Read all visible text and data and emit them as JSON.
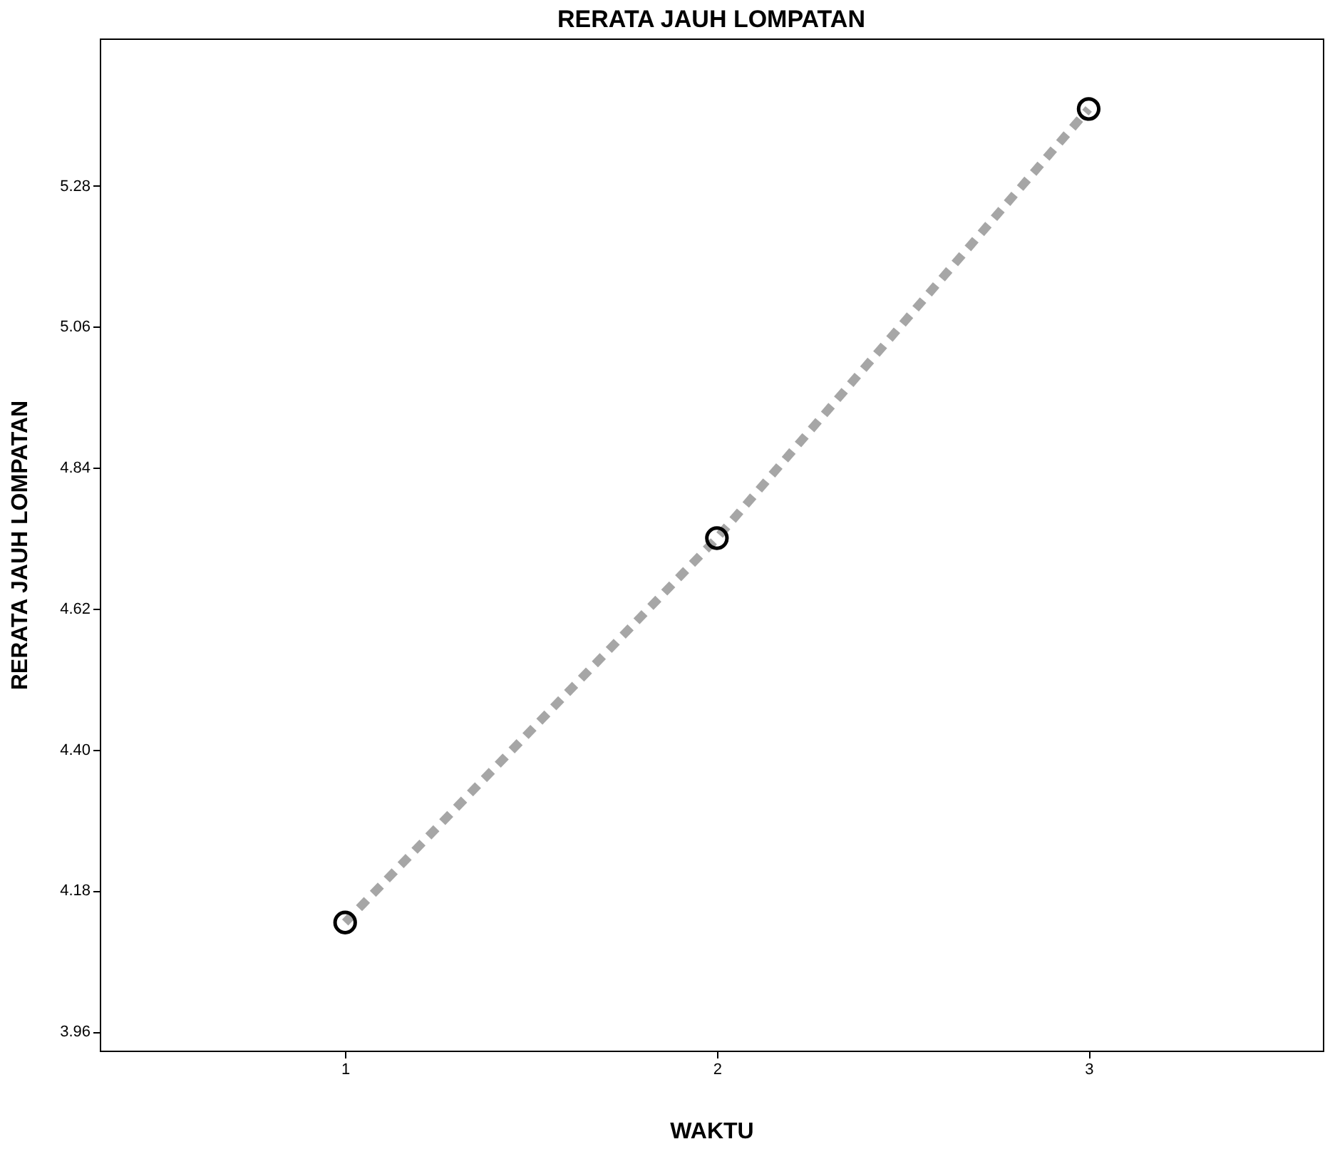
{
  "chart_data": {
    "type": "line",
    "title": "RERATA JAUH LOMPATAN",
    "xlabel": "WAKTU",
    "ylabel": "RERATA JAUH LOMPATAN",
    "x": [
      1,
      2,
      3
    ],
    "series": [
      {
        "color": "#a6a6a6",
        "values": [
          4.13,
          4.73,
          5.4
        ]
      }
    ],
    "xlim": [
      0.34,
      3.63
    ],
    "xticks": [
      1,
      2,
      3
    ],
    "ylim": [
      3.93,
      5.51
    ],
    "yticks": [
      {
        "value": 3.96,
        "label": "3.96"
      },
      {
        "value": 4.18,
        "label": "4.18"
      },
      {
        "value": 4.4,
        "label": "4.40"
      },
      {
        "value": 4.62,
        "label": "4.62"
      },
      {
        "value": 4.84,
        "label": "4.84"
      },
      {
        "value": 5.06,
        "label": "5.06"
      },
      {
        "value": 5.28,
        "label": "5.28"
      }
    ],
    "marker": "circle",
    "line_style": "dashed",
    "grid": false
  }
}
